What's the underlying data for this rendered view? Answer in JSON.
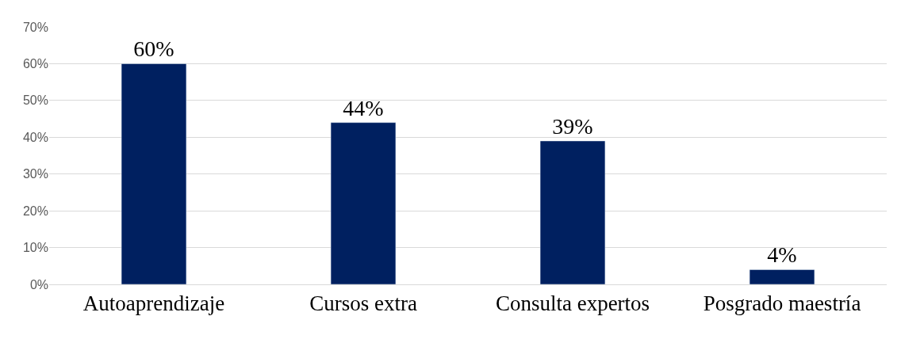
{
  "chart_data": {
    "type": "bar",
    "categories": [
      "Autoaprendizaje",
      "Cursos extra",
      "Consulta expertos",
      "Posgrado maestría"
    ],
    "values": [
      60,
      44,
      39,
      4
    ],
    "value_labels": [
      "60%",
      "44%",
      "39%",
      "4%"
    ],
    "color": "#002060",
    "ylim": [
      0,
      70
    ],
    "yticks": [
      {
        "value": 0,
        "label": "0%"
      },
      {
        "value": 10,
        "label": "10%"
      },
      {
        "value": 20,
        "label": "20%"
      },
      {
        "value": 30,
        "label": "30%"
      },
      {
        "value": 40,
        "label": "40%"
      },
      {
        "value": 50,
        "label": "50%"
      },
      {
        "value": 60,
        "label": "60%"
      },
      {
        "value": 70,
        "label": "70%"
      }
    ],
    "grid": "y",
    "legend": false
  }
}
